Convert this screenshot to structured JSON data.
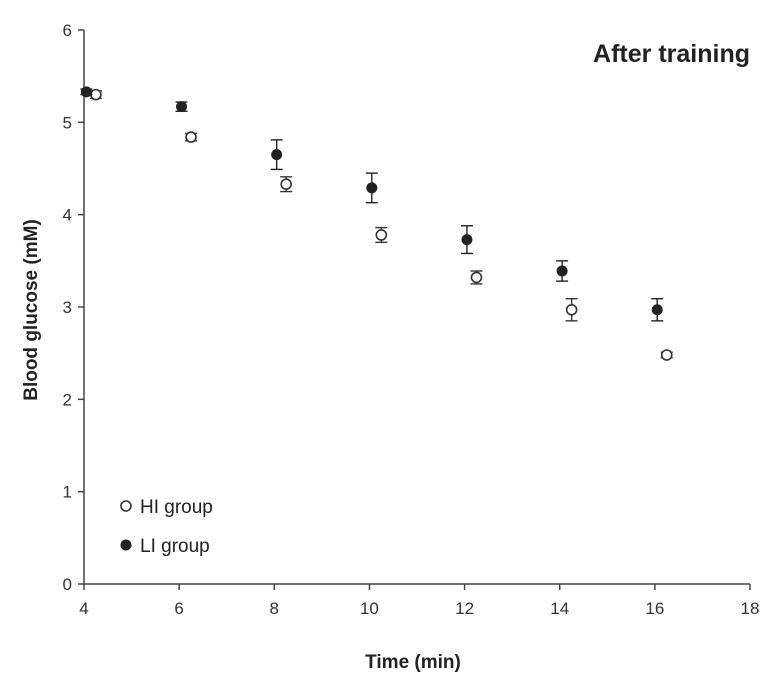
{
  "chart_data": {
    "type": "scatter",
    "title": "After training",
    "xlabel": "Time (min)",
    "ylabel": "Blood glucose (mM)",
    "xlim": [
      4,
      18
    ],
    "ylim": [
      0,
      6
    ],
    "xticks": [
      4,
      6,
      8,
      10,
      12,
      14,
      16,
      18
    ],
    "yticks": [
      0,
      1,
      2,
      3,
      4,
      5,
      6
    ],
    "grid": false,
    "legend_position": "bottom-left",
    "series": [
      {
        "name": "HI group",
        "marker": "open-circle",
        "color": "#333333",
        "x": [
          4.25,
          6.25,
          8.25,
          10.25,
          12.25,
          14.25,
          16.25
        ],
        "y": [
          5.3,
          4.84,
          4.33,
          3.78,
          3.32,
          2.97,
          2.48
        ],
        "error": [
          0.04,
          0.04,
          0.08,
          0.08,
          0.07,
          0.12,
          0.03
        ]
      },
      {
        "name": "LI group",
        "marker": "filled-circle",
        "color": "#222222",
        "x": [
          4.05,
          6.05,
          8.05,
          10.05,
          12.05,
          14.05,
          16.05
        ],
        "y": [
          5.33,
          5.17,
          4.65,
          4.29,
          3.73,
          3.39,
          2.97
        ],
        "error": [
          0.03,
          0.05,
          0.16,
          0.16,
          0.15,
          0.11,
          0.12
        ]
      }
    ]
  }
}
